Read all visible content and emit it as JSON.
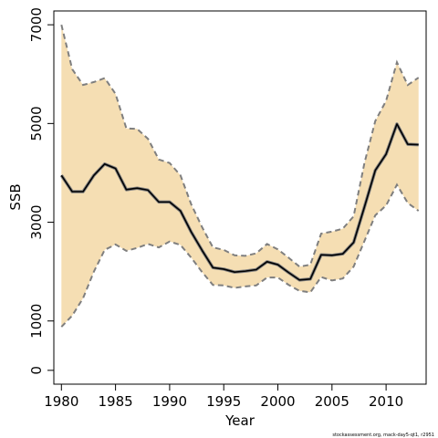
{
  "chart_data": {
    "type": "line",
    "title": "",
    "xlabel": "Year",
    "ylabel": "SSB",
    "xlim": [
      1979.3,
      2013.7
    ],
    "ylim": [
      -280,
      7280
    ],
    "x_ticks": [
      1980,
      1985,
      1990,
      1995,
      2000,
      2005,
      2010
    ],
    "y_ticks": [
      0,
      1000,
      3000,
      5000,
      7000
    ],
    "grid": false,
    "legend": "none",
    "colors": {
      "band": "#f5deb3",
      "bound": "#7f7f7f",
      "estimate": "#000000",
      "estimate_halo": "#808080"
    },
    "x": [
      1980,
      1981,
      1982,
      1983,
      1984,
      1985,
      1986,
      1987,
      1988,
      1989,
      1990,
      1991,
      1992,
      1993,
      1994,
      1995,
      1996,
      1997,
      1998,
      1999,
      2000,
      2001,
      2002,
      2003,
      2004,
      2005,
      2006,
      2007,
      2008,
      2009,
      2010,
      2011,
      2012,
      2013
    ],
    "series": [
      {
        "role": "estimate",
        "values": [
          3950,
          3620,
          3620,
          3950,
          4180,
          4090,
          3660,
          3690,
          3650,
          3410,
          3410,
          3230,
          2800,
          2430,
          2080,
          2050,
          1990,
          2010,
          2040,
          2200,
          2140,
          1980,
          1830,
          1850,
          2340,
          2330,
          2360,
          2590,
          3310,
          4050,
          4380,
          4990,
          4580,
          4570
        ]
      },
      {
        "role": "upper",
        "values": [
          7000,
          6100,
          5780,
          5840,
          5920,
          5600,
          4900,
          4890,
          4690,
          4270,
          4200,
          3950,
          3360,
          2900,
          2490,
          2440,
          2330,
          2320,
          2370,
          2560,
          2450,
          2280,
          2100,
          2140,
          2770,
          2810,
          2870,
          3120,
          4200,
          5050,
          5460,
          6240,
          5780,
          5930
        ]
      },
      {
        "role": "lower",
        "values": [
          880,
          1110,
          1460,
          2000,
          2440,
          2550,
          2420,
          2480,
          2560,
          2490,
          2610,
          2540,
          2280,
          1990,
          1730,
          1720,
          1670,
          1700,
          1720,
          1880,
          1880,
          1730,
          1610,
          1580,
          1890,
          1820,
          1860,
          2100,
          2620,
          3140,
          3340,
          3760,
          3390,
          3230
        ]
      }
    ]
  },
  "footnote": "stockassessment.org, mack-day5-qt1, r2951"
}
